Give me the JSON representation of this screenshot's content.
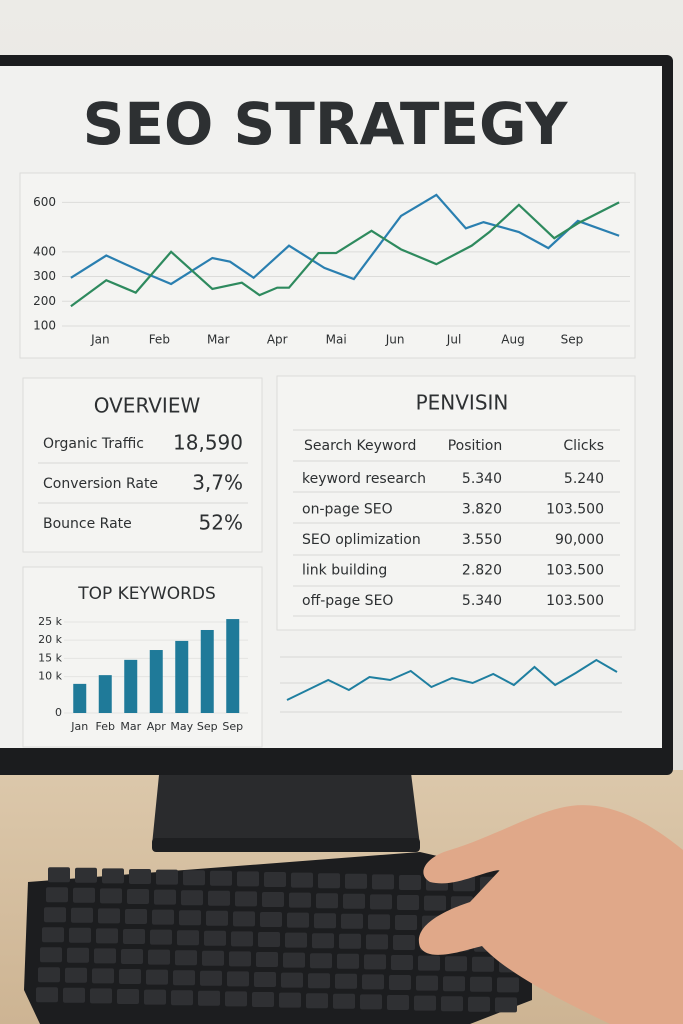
{
  "title": "SEO STRATEGY",
  "chart_data": [
    {
      "type": "line",
      "xlim": [
        0.4,
        9.9
      ],
      "xticks": [
        {
          "value": 1,
          "label": "Jan"
        },
        {
          "value": 2,
          "label": "Feb"
        },
        {
          "value": 3,
          "label": "Mar"
        },
        {
          "value": 4,
          "label": "Apr"
        },
        {
          "value": 5,
          "label": "Mai"
        },
        {
          "value": 6,
          "label": "Jun"
        },
        {
          "value": 7,
          "label": "Jul"
        },
        {
          "value": 8,
          "label": "Aug"
        },
        {
          "value": 9,
          "label": "Sep"
        }
      ],
      "ylim": [
        100,
        650
      ],
      "yticks": [
        100,
        200,
        300,
        400,
        600
      ],
      "grid": true,
      "series": [
        {
          "color": "#2a7fb0",
          "x": [
            0.5,
            1.1,
            1.7,
            2.2,
            2.9,
            3.2,
            3.6,
            4.2,
            4.8,
            5.3,
            6.1,
            6.7,
            7.2,
            7.5,
            8.1,
            8.6,
            9.1,
            9.8
          ],
          "values": [
            295,
            385,
            320,
            270,
            375,
            360,
            295,
            425,
            335,
            290,
            545,
            630,
            495,
            520,
            480,
            415,
            525,
            465
          ]
        },
        {
          "color": "#2e8a5e",
          "x": [
            0.5,
            1.1,
            1.6,
            2.2,
            2.9,
            3.4,
            3.7,
            4.0,
            4.2,
            4.7,
            5.0,
            5.6,
            6.1,
            6.7,
            7.3,
            7.6,
            8.1,
            8.7,
            9.1,
            9.8
          ],
          "values": [
            180,
            285,
            235,
            400,
            250,
            275,
            225,
            255,
            255,
            395,
            395,
            485,
            410,
            350,
            425,
            480,
            590,
            455,
            515,
            600
          ]
        }
      ]
    },
    {
      "type": "bar",
      "title": "TOP KEYWORDS",
      "categories": [
        "Jan",
        "Feb",
        "Mar",
        "Apr",
        "May",
        "Sep",
        "Sep"
      ],
      "values": [
        8.0,
        10.4,
        14.6,
        17.3,
        19.8,
        22.8,
        25.8
      ],
      "color": "#1f7a99",
      "ylim": [
        0,
        27
      ],
      "yticks": [
        0,
        {
          "value": 10,
          "label": "10 k"
        },
        {
          "value": 15,
          "label": "15 k"
        },
        {
          "value": 20,
          "label": "20 k"
        },
        {
          "value": 25,
          "label": "25 k"
        }
      ]
    },
    {
      "type": "sparkline",
      "color": "#1f7fa0",
      "ylim": [
        0,
        80
      ],
      "values": [
        20,
        30,
        40,
        30,
        43,
        40,
        49,
        33,
        42,
        37,
        46,
        35,
        53,
        35,
        47,
        60,
        48
      ]
    }
  ],
  "overview": {
    "title": "OVERVIEW",
    "rows": [
      [
        "Organic Traffic",
        "18,590"
      ],
      [
        "Conversion Rate",
        "3,7%"
      ],
      [
        "Bounce Rate",
        "52%"
      ]
    ]
  },
  "table": {
    "title": "PENVISIN",
    "header": [
      "Search Keyword",
      "Position",
      "Clicks"
    ],
    "rows": [
      [
        "keyword research",
        "5.340",
        "5.240"
      ],
      [
        "on-page SEO",
        "3.820",
        "103.500"
      ],
      [
        "SEO oplimization",
        "3.550",
        "90,000"
      ],
      [
        "link building",
        "2.820",
        "103.500"
      ],
      [
        "off-page SEO",
        "5.340",
        "103.500"
      ]
    ]
  }
}
